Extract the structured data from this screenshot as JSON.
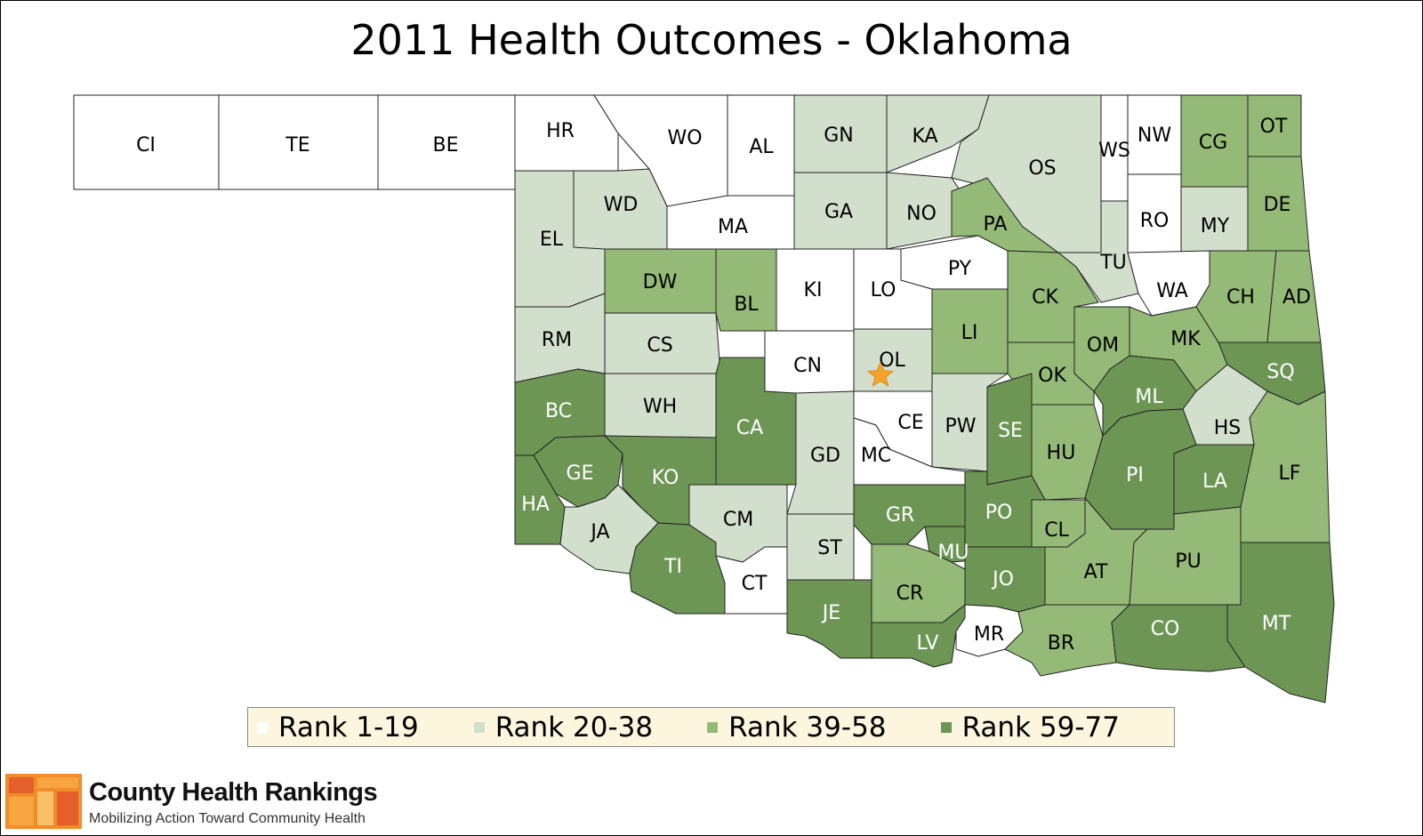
{
  "title": "2011 Health Outcomes - Oklahoma",
  "colors": {
    "rank_1_19": "#ffffff",
    "rank_20_38": "#d3dfcd",
    "rank_39_58": "#95ba77",
    "rank_59_77": "#6d9655",
    "border": "#222222",
    "star": "#f5a12a",
    "legend_bg": "#fdf6de"
  },
  "legend": [
    {
      "label": "Rank 1-19",
      "color": "#ffffff"
    },
    {
      "label": "Rank 20-38",
      "color": "#d3dfcd"
    },
    {
      "label": "Rank 39-58",
      "color": "#95ba77"
    },
    {
      "label": "Rank 59-77",
      "color": "#6d9655"
    }
  ],
  "counties": [
    {
      "abbr": "CI",
      "rank_class": 1
    },
    {
      "abbr": "TE",
      "rank_class": 1
    },
    {
      "abbr": "BE",
      "rank_class": 1
    },
    {
      "abbr": "HR",
      "rank_class": 1
    },
    {
      "abbr": "WO",
      "rank_class": 1
    },
    {
      "abbr": "AL",
      "rank_class": 1
    },
    {
      "abbr": "GN",
      "rank_class": 2
    },
    {
      "abbr": "KA",
      "rank_class": 2
    },
    {
      "abbr": "OS",
      "rank_class": 2
    },
    {
      "abbr": "WS",
      "rank_class": 1
    },
    {
      "abbr": "NW",
      "rank_class": 1
    },
    {
      "abbr": "CG",
      "rank_class": 3
    },
    {
      "abbr": "OT",
      "rank_class": 3
    },
    {
      "abbr": "EL",
      "rank_class": 2
    },
    {
      "abbr": "WD",
      "rank_class": 2
    },
    {
      "abbr": "MA",
      "rank_class": 1
    },
    {
      "abbr": "GA",
      "rank_class": 2
    },
    {
      "abbr": "NO",
      "rank_class": 2
    },
    {
      "abbr": "PA",
      "rank_class": 3
    },
    {
      "abbr": "RO",
      "rank_class": 1
    },
    {
      "abbr": "MY",
      "rank_class": 2
    },
    {
      "abbr": "DE",
      "rank_class": 3
    },
    {
      "abbr": "DW",
      "rank_class": 3
    },
    {
      "abbr": "BL",
      "rank_class": 3
    },
    {
      "abbr": "KI",
      "rank_class": 1
    },
    {
      "abbr": "LO",
      "rank_class": 1
    },
    {
      "abbr": "PY",
      "rank_class": 1
    },
    {
      "abbr": "TU",
      "rank_class": 2
    },
    {
      "abbr": "WA",
      "rank_class": 1
    },
    {
      "abbr": "CK",
      "rank_class": 3
    },
    {
      "abbr": "CH",
      "rank_class": 3
    },
    {
      "abbr": "AD",
      "rank_class": 3
    },
    {
      "abbr": "RM",
      "rank_class": 2
    },
    {
      "abbr": "CS",
      "rank_class": 2
    },
    {
      "abbr": "LI",
      "rank_class": 3
    },
    {
      "abbr": "OM",
      "rank_class": 3
    },
    {
      "abbr": "MK",
      "rank_class": 3
    },
    {
      "abbr": "CN",
      "rank_class": 1
    },
    {
      "abbr": "OL",
      "rank_class": 2
    },
    {
      "abbr": "OK",
      "rank_class": 3
    },
    {
      "abbr": "SQ",
      "rank_class": 4
    },
    {
      "abbr": "BC",
      "rank_class": 4
    },
    {
      "abbr": "WH",
      "rank_class": 2
    },
    {
      "abbr": "CA",
      "rank_class": 4
    },
    {
      "abbr": "CE",
      "rank_class": 1
    },
    {
      "abbr": "PW",
      "rank_class": 2
    },
    {
      "abbr": "SE",
      "rank_class": 4
    },
    {
      "abbr": "ML",
      "rank_class": 4
    },
    {
      "abbr": "HS",
      "rank_class": 2
    },
    {
      "abbr": "GE",
      "rank_class": 4
    },
    {
      "abbr": "KO",
      "rank_class": 4
    },
    {
      "abbr": "GD",
      "rank_class": 2
    },
    {
      "abbr": "MC",
      "rank_class": 1
    },
    {
      "abbr": "HU",
      "rank_class": 3
    },
    {
      "abbr": "PI",
      "rank_class": 4
    },
    {
      "abbr": "LA",
      "rank_class": 4
    },
    {
      "abbr": "LF",
      "rank_class": 3
    },
    {
      "abbr": "HA",
      "rank_class": 4
    },
    {
      "abbr": "JA",
      "rank_class": 2
    },
    {
      "abbr": "CM",
      "rank_class": 2
    },
    {
      "abbr": "GR",
      "rank_class": 4
    },
    {
      "abbr": "PO",
      "rank_class": 4
    },
    {
      "abbr": "CL",
      "rank_class": 3
    },
    {
      "abbr": "ST",
      "rank_class": 2
    },
    {
      "abbr": "MU",
      "rank_class": 4
    },
    {
      "abbr": "TI",
      "rank_class": 4
    },
    {
      "abbr": "CT",
      "rank_class": 1
    },
    {
      "abbr": "AT",
      "rank_class": 3
    },
    {
      "abbr": "PU",
      "rank_class": 3
    },
    {
      "abbr": "CR",
      "rank_class": 3
    },
    {
      "abbr": "JO",
      "rank_class": 4
    },
    {
      "abbr": "JE",
      "rank_class": 4
    },
    {
      "abbr": "MT",
      "rank_class": 4
    },
    {
      "abbr": "LV",
      "rank_class": 4
    },
    {
      "abbr": "MR",
      "rank_class": 1
    },
    {
      "abbr": "BR",
      "rank_class": 3
    },
    {
      "abbr": "CO",
      "rank_class": 4
    }
  ],
  "capital_marker": {
    "county": "OL",
    "icon": "star-icon"
  },
  "logo": {
    "name": "County Health Rankings",
    "tagline": "Mobilizing Action Toward Community Health"
  }
}
